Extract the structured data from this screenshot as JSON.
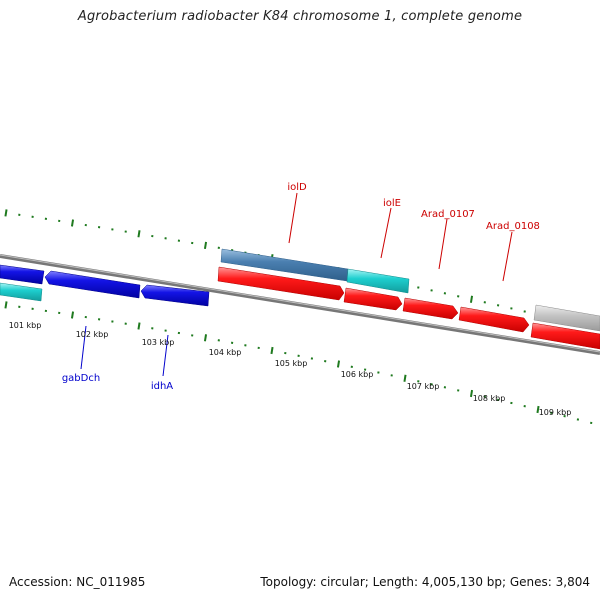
{
  "title": "Agrobacterium radiobacter K84 chromosome 1, complete genome",
  "footer": {
    "accession": "Accession: NC_011985",
    "stats": "Topology: circular; Length: 4,005,130 bp; Genes: 3,804"
  },
  "colors": {
    "backbone": "#808080",
    "tick_green": "#1f7a1f",
    "forward_gene": "#ff1a1a",
    "reverse_gene": "#1414e6",
    "cyan_gene": "#1ecfcf",
    "steel_gene": "#4a7fb0",
    "gray_gene": "#c0c0c0",
    "label_red": "#cc0000",
    "label_blue": "#0000cc"
  },
  "ruler": [
    "101 kbp",
    "102 kbp",
    "103 kbp",
    "104 kbp",
    "105 kbp",
    "106 kbp",
    "107 kbp",
    "108 kbp",
    "109 kbp"
  ],
  "genes": [
    {
      "label": "iolD",
      "strand": "forward",
      "color": "steel"
    },
    {
      "label": "iolE",
      "strand": "forward",
      "color": "cyan"
    },
    {
      "label": "Arad_0107",
      "strand": "forward",
      "color": "red"
    },
    {
      "label": "Arad_0108",
      "strand": "forward",
      "color": "red"
    },
    {
      "label": "gabDch",
      "strand": "reverse",
      "color": "blue"
    },
    {
      "label": "idhA",
      "strand": "reverse",
      "color": "blue"
    }
  ]
}
